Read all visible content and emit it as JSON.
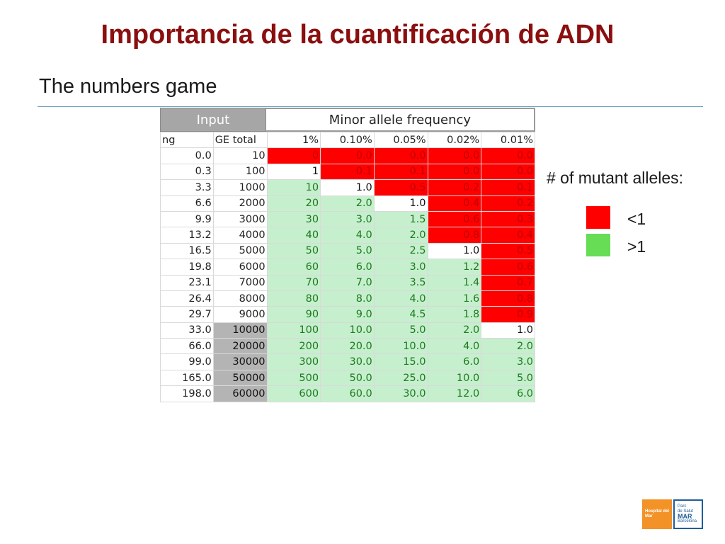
{
  "slide": {
    "title": "Importancia de la cuantificación de ADN",
    "subtitle": "The numbers game"
  },
  "table": {
    "header_input": "Input",
    "header_maf": "Minor allele frequency",
    "columns": [
      "ng",
      "GE total",
      "1%",
      "0.10%",
      "0.05%",
      "0.02%",
      "0.01%"
    ],
    "colors": {
      "red": "#ff0000",
      "green": "#c6efce",
      "gray": "#b4b4b4",
      "white": "#ffffff"
    },
    "rows": [
      {
        "ng": "0.0",
        "ge": "10",
        "ge_style": "plain",
        "cells": [
          {
            "v": "0",
            "s": "red"
          },
          {
            "v": "0.0",
            "s": "red"
          },
          {
            "v": "0.0",
            "s": "red"
          },
          {
            "v": "0.0",
            "s": "red"
          },
          {
            "v": "0.0",
            "s": "red"
          }
        ]
      },
      {
        "ng": "0.3",
        "ge": "100",
        "ge_style": "plain",
        "cells": [
          {
            "v": "1",
            "s": "white"
          },
          {
            "v": "0.1",
            "s": "red"
          },
          {
            "v": "0.1",
            "s": "red"
          },
          {
            "v": "0.0",
            "s": "red"
          },
          {
            "v": "0.0",
            "s": "red"
          }
        ]
      },
      {
        "ng": "3.3",
        "ge": "1000",
        "ge_style": "plain",
        "cells": [
          {
            "v": "10",
            "s": "green"
          },
          {
            "v": "1.0",
            "s": "white"
          },
          {
            "v": "0.5",
            "s": "red"
          },
          {
            "v": "0.2",
            "s": "red"
          },
          {
            "v": "0.1",
            "s": "red"
          }
        ]
      },
      {
        "ng": "6.6",
        "ge": "2000",
        "ge_style": "plain",
        "cells": [
          {
            "v": "20",
            "s": "green"
          },
          {
            "v": "2.0",
            "s": "green"
          },
          {
            "v": "1.0",
            "s": "white"
          },
          {
            "v": "0.4",
            "s": "red"
          },
          {
            "v": "0.2",
            "s": "red"
          }
        ]
      },
      {
        "ng": "9.9",
        "ge": "3000",
        "ge_style": "plain",
        "cells": [
          {
            "v": "30",
            "s": "green"
          },
          {
            "v": "3.0",
            "s": "green"
          },
          {
            "v": "1.5",
            "s": "green"
          },
          {
            "v": "0.6",
            "s": "red"
          },
          {
            "v": "0.3",
            "s": "red"
          }
        ]
      },
      {
        "ng": "13.2",
        "ge": "4000",
        "ge_style": "plain",
        "cells": [
          {
            "v": "40",
            "s": "green"
          },
          {
            "v": "4.0",
            "s": "green"
          },
          {
            "v": "2.0",
            "s": "green"
          },
          {
            "v": "0.8",
            "s": "red"
          },
          {
            "v": "0.4",
            "s": "red"
          }
        ]
      },
      {
        "ng": "16.5",
        "ge": "5000",
        "ge_style": "plain",
        "cells": [
          {
            "v": "50",
            "s": "green"
          },
          {
            "v": "5.0",
            "s": "green"
          },
          {
            "v": "2.5",
            "s": "green"
          },
          {
            "v": "1.0",
            "s": "white"
          },
          {
            "v": "0.5",
            "s": "red"
          }
        ]
      },
      {
        "ng": "19.8",
        "ge": "6000",
        "ge_style": "plain",
        "cells": [
          {
            "v": "60",
            "s": "green"
          },
          {
            "v": "6.0",
            "s": "green"
          },
          {
            "v": "3.0",
            "s": "green"
          },
          {
            "v": "1.2",
            "s": "green"
          },
          {
            "v": "0.6",
            "s": "red"
          }
        ]
      },
      {
        "ng": "23.1",
        "ge": "7000",
        "ge_style": "plain",
        "cells": [
          {
            "v": "70",
            "s": "green"
          },
          {
            "v": "7.0",
            "s": "green"
          },
          {
            "v": "3.5",
            "s": "green"
          },
          {
            "v": "1.4",
            "s": "green"
          },
          {
            "v": "0.7",
            "s": "red"
          }
        ]
      },
      {
        "ng": "26.4",
        "ge": "8000",
        "ge_style": "plain",
        "cells": [
          {
            "v": "80",
            "s": "green"
          },
          {
            "v": "8.0",
            "s": "green"
          },
          {
            "v": "4.0",
            "s": "green"
          },
          {
            "v": "1.6",
            "s": "green"
          },
          {
            "v": "0.8",
            "s": "red"
          }
        ]
      },
      {
        "ng": "29.7",
        "ge": "9000",
        "ge_style": "plain",
        "cells": [
          {
            "v": "90",
            "s": "green"
          },
          {
            "v": "9.0",
            "s": "green"
          },
          {
            "v": "4.5",
            "s": "green"
          },
          {
            "v": "1.8",
            "s": "green"
          },
          {
            "v": "0.9",
            "s": "red"
          }
        ]
      },
      {
        "ng": "33.0",
        "ge": "10000",
        "ge_style": "gray",
        "cells": [
          {
            "v": "100",
            "s": "green"
          },
          {
            "v": "10.0",
            "s": "green"
          },
          {
            "v": "5.0",
            "s": "green"
          },
          {
            "v": "2.0",
            "s": "green"
          },
          {
            "v": "1.0",
            "s": "white"
          }
        ]
      },
      {
        "ng": "66.0",
        "ge": "20000",
        "ge_style": "gray",
        "cells": [
          {
            "v": "200",
            "s": "green"
          },
          {
            "v": "20.0",
            "s": "green"
          },
          {
            "v": "10.0",
            "s": "green"
          },
          {
            "v": "4.0",
            "s": "green"
          },
          {
            "v": "2.0",
            "s": "green"
          }
        ]
      },
      {
        "ng": "99.0",
        "ge": "30000",
        "ge_style": "gray",
        "cells": [
          {
            "v": "300",
            "s": "green"
          },
          {
            "v": "30.0",
            "s": "green"
          },
          {
            "v": "15.0",
            "s": "green"
          },
          {
            "v": "6.0",
            "s": "green"
          },
          {
            "v": "3.0",
            "s": "green"
          }
        ]
      },
      {
        "ng": "165.0",
        "ge": "50000",
        "ge_style": "gray",
        "cells": [
          {
            "v": "500",
            "s": "green"
          },
          {
            "v": "50.0",
            "s": "green"
          },
          {
            "v": "25.0",
            "s": "green"
          },
          {
            "v": "10.0",
            "s": "green"
          },
          {
            "v": "5.0",
            "s": "green"
          }
        ]
      },
      {
        "ng": "198.0",
        "ge": "60000",
        "ge_style": "gray",
        "cells": [
          {
            "v": "600",
            "s": "green"
          },
          {
            "v": "60.0",
            "s": "green"
          },
          {
            "v": "30.0",
            "s": "green"
          },
          {
            "v": "12.0",
            "s": "green"
          },
          {
            "v": "6.0",
            "s": "green"
          }
        ]
      }
    ]
  },
  "legend": {
    "title": "# of mutant alleles:",
    "items": [
      {
        "label": "<1",
        "color": "#ff0000"
      },
      {
        "label": ">1",
        "color": "#66dd55"
      }
    ]
  },
  "logos": {
    "hospital": "Hospital del Mar",
    "parc_line1": "Parc",
    "parc_line2": "de Salut",
    "parc_line3": "MAR",
    "parc_line4": "Barcelona"
  }
}
